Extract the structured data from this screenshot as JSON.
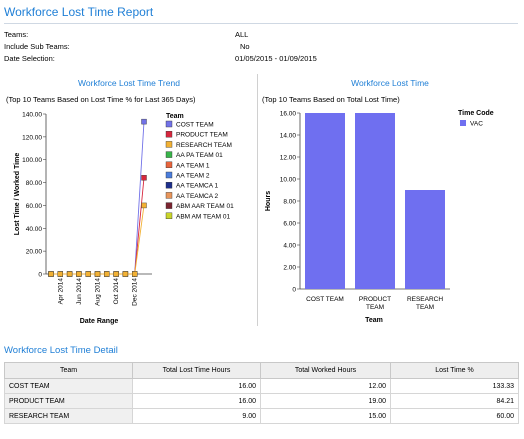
{
  "report": {
    "title": "Workforce Lost Time Report"
  },
  "params": [
    {
      "label": "Teams:",
      "value": "ALL"
    },
    {
      "label": "Include Sub Teams:",
      "value": "No"
    },
    {
      "label": "Date Selection:",
      "value": "01/05/2015 - 01/09/2015"
    }
  ],
  "trend_panel": {
    "title": "Workforce Lost Time Trend",
    "subtitle": "(Top 10 Teams Based on Lost Time % for Last 365 Days)"
  },
  "bar_panel": {
    "title": "Workforce Lost Time",
    "subtitle": "(Top 10 Teams Based on Total Lost Time)"
  },
  "chart_data": [
    {
      "type": "line",
      "xlabel": "Date Range",
      "ylabel": "Lost Time / Worked Time",
      "x": [
        "Apr 2014",
        "Jun 2014",
        "Aug 2014",
        "Oct 2014",
        "Dec 2014"
      ],
      "ylim": [
        0,
        140
      ],
      "yticks": [
        "0",
        "20.00",
        "40.00",
        "60.00",
        "80.00",
        "100.00",
        "120.00",
        "140.00"
      ],
      "grid": false,
      "legend_title": "Team",
      "legend_placement": "right",
      "series": [
        {
          "name": "COST TEAM",
          "color": "#7272e8",
          "points": [
            [
              0,
              0
            ],
            [
              1,
              0
            ],
            [
              2,
              0
            ],
            [
              3,
              0
            ],
            [
              4,
              0
            ],
            [
              5,
              0
            ],
            [
              6,
              0
            ],
            [
              7,
              0
            ],
            [
              8,
              0
            ],
            [
              9,
              0
            ],
            [
              10,
              133.33
            ]
          ]
        },
        {
          "name": "PRODUCT TEAM",
          "color": "#d7263d",
          "points": [
            [
              0,
              0
            ],
            [
              1,
              0
            ],
            [
              2,
              0
            ],
            [
              3,
              0
            ],
            [
              4,
              0
            ],
            [
              5,
              0
            ],
            [
              6,
              0
            ],
            [
              7,
              0
            ],
            [
              8,
              0
            ],
            [
              9,
              0
            ],
            [
              10,
              84.21
            ]
          ]
        },
        {
          "name": "RESEARCH TEAM",
          "color": "#f2b134",
          "points": [
            [
              0,
              0
            ],
            [
              1,
              0
            ],
            [
              2,
              0
            ],
            [
              3,
              0
            ],
            [
              4,
              0
            ],
            [
              5,
              0
            ],
            [
              6,
              0
            ],
            [
              7,
              0
            ],
            [
              8,
              0
            ],
            [
              9,
              0
            ],
            [
              10,
              60
            ]
          ]
        },
        {
          "name": "AA PA TEAM 01",
          "color": "#39b54a",
          "points": []
        },
        {
          "name": "AA TEAM 1",
          "color": "#e8643c",
          "points": []
        },
        {
          "name": "AA TEAM 2",
          "color": "#4a7ddc",
          "points": []
        },
        {
          "name": "AA TEAMCA 1",
          "color": "#1d2f8c",
          "points": []
        },
        {
          "name": "AA TEAMCA 2",
          "color": "#e8955a",
          "points": []
        },
        {
          "name": "ABM AAR TEAM 01",
          "color": "#7a2430",
          "points": []
        },
        {
          "name": "ABM AM TEAM 01",
          "color": "#c9d42a",
          "points": []
        }
      ]
    },
    {
      "type": "bar",
      "categories": [
        "COST TEAM",
        "PRODUCT TEAM",
        "RESEARCH TEAM"
      ],
      "categories_display": [
        [
          "COST TEAM"
        ],
        [
          "PRODUCT",
          "TEAM"
        ],
        [
          "RESEARCH",
          "TEAM"
        ]
      ],
      "xlabel": "Team",
      "ylabel": "Hours",
      "ylim": [
        0,
        16
      ],
      "yticks": [
        "0",
        "2.00",
        "4.00",
        "6.00",
        "8.00",
        "10.00",
        "12.00",
        "14.00",
        "16.00"
      ],
      "grid": false,
      "legend_title": "Time Code",
      "legend_placement": "top-right",
      "series": [
        {
          "name": "VAC",
          "color": "#6f6ff0",
          "values": [
            16,
            16,
            9
          ]
        }
      ]
    }
  ],
  "detail": {
    "title": "Workforce Lost Time Detail",
    "columns": [
      "Team",
      "Total Lost Time Hours",
      "Total Worked Hours",
      "Lost Time %"
    ],
    "rows": [
      [
        "COST TEAM",
        "16.00",
        "12.00",
        "133.33"
      ],
      [
        "PRODUCT TEAM",
        "16.00",
        "19.00",
        "84.21"
      ],
      [
        "RESEARCH TEAM",
        "9.00",
        "15.00",
        "60.00"
      ]
    ]
  }
}
